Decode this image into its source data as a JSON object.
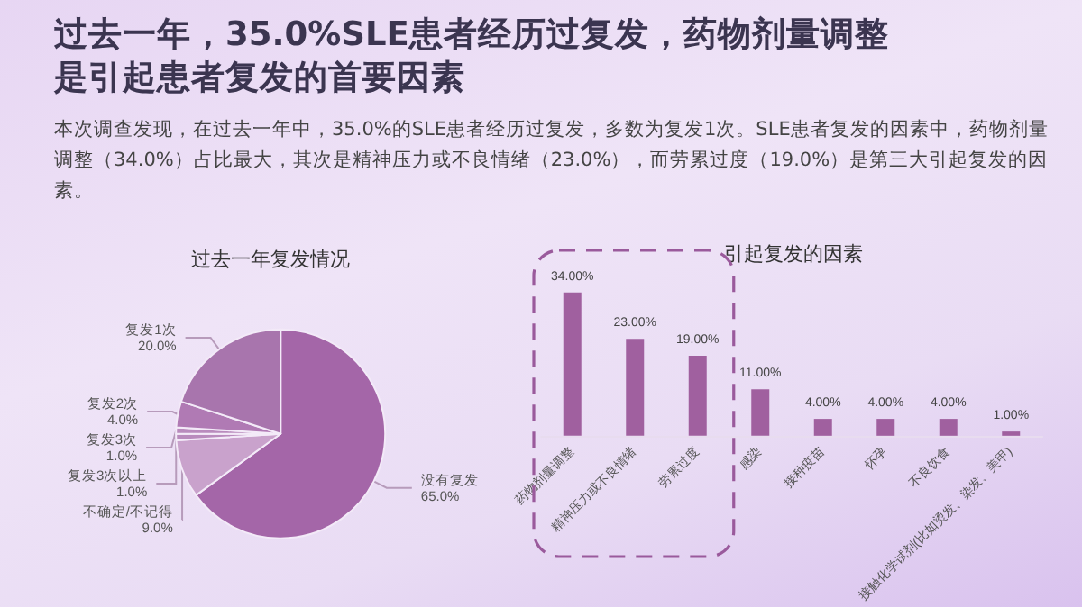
{
  "chart_data": [
    {
      "type": "pie",
      "title": "过去一年，35.0%SLE患者经历过复发，药物剂量调整是引起患者复发的首要因素",
      "subtitle": "本次调查发现，在过去一年中，35.0%的SLE患者经历过复发，多数为复发1次。SLE患者复发的因素中，药物剂量调整（34.0%）占比最大，其次是精神压力或不良情绪（23.0%），而劳累过度（19.0%）是第三大引起复发的因素。",
      "annotations": [
        "过去一年复发情况"
      ],
      "categories": [
        "没有复发",
        "不确定/不记得",
        "复发3次以上",
        "复发3次",
        "复发2次",
        "复发1次"
      ],
      "values": [
        65.0,
        9.0,
        1.0,
        1.0,
        4.0,
        20.0
      ],
      "value_labels": [
        "65.0%",
        "9.0%",
        "1.0%",
        "1.0%",
        "4.0%",
        "20.0%"
      ],
      "colors": [
        "#a466a8",
        "#c9a2cc",
        "#b98bbd",
        "#b98bbd",
        "#b07ab4",
        "#a875ad"
      ]
    },
    {
      "type": "bar",
      "title": "引起复发的因素",
      "categories": [
        "药物剂量调整",
        "精神压力或不良情绪",
        "劳累过度",
        "感染",
        "接种疫苗",
        "怀孕",
        "不良饮食",
        "接触化学试剂(比如烫发、染发、美甲)"
      ],
      "values": [
        34,
        23,
        19,
        11,
        4,
        4,
        4,
        1
      ],
      "value_labels": [
        "34.00%",
        "23.00%",
        "19.00%",
        "11.00%",
        "4.00%",
        "4.00%",
        "4.00%",
        "1.00%"
      ],
      "color": "#a0609f"
    }
  ]
}
